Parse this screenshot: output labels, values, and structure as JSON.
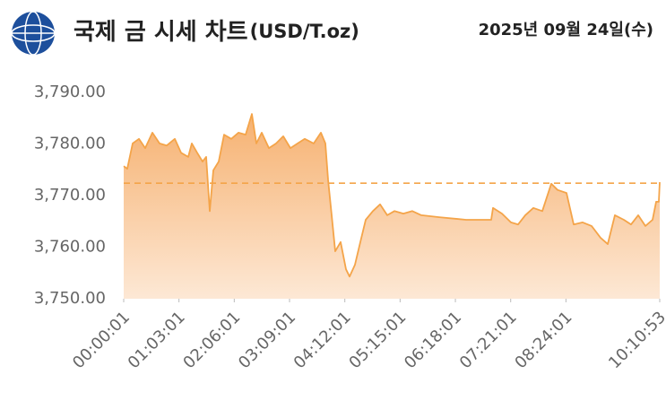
{
  "chart_data": {
    "type": "area",
    "title": "국제 금 시세 차트",
    "title_unit": "(USD/T.oz)",
    "date": "2025년 09월 24일(수)",
    "color": "#f4a449",
    "x": [
      1,
      245,
      613,
      1042,
      1471,
      1961,
      2452,
      2942,
      3494,
      3923,
      4413,
      4658,
      5026,
      5394,
      5639,
      5884,
      6129,
      6497,
      6864,
      7355,
      7845,
      8335,
      8764,
      9071,
      9439,
      9929,
      10419,
      10910,
      11400,
      11890,
      12381,
      12993,
      13484,
      13790,
      13974,
      14219,
      14464,
      14832,
      15200,
      15445,
      15813,
      16181,
      16548,
      17039,
      17529,
      18019,
      18510,
      19122,
      19735,
      20348,
      21574,
      23413,
      25129,
      25252,
      25865,
      26477,
      26968,
      27458,
      28010,
      28622,
      29235,
      29664,
      30277,
      30767,
      31380,
      31993,
      32606,
      33096,
      33587,
      34200,
      34690,
      35180,
      35671,
      36161,
      36406,
      36591,
      36653
    ],
    "values": [
      3775.7,
      3775.2,
      3780.1,
      3781,
      3779.2,
      3782.2,
      3780.1,
      3779.7,
      3781,
      3778.3,
      3777.5,
      3780.1,
      3778.3,
      3776.6,
      3777.5,
      3767,
      3774.9,
      3776.6,
      3781.8,
      3781,
      3782.2,
      3781.8,
      3785.8,
      3780.1,
      3782.2,
      3779.2,
      3780.1,
      3781.5,
      3779.2,
      3780.1,
      3781,
      3780.1,
      3782.2,
      3780.1,
      3773.1,
      3766.2,
      3759.2,
      3761,
      3755.7,
      3754.3,
      3756.6,
      3761,
      3765.3,
      3767,
      3768.3,
      3766.2,
      3767,
      3766.5,
      3767,
      3766.2,
      3765.8,
      3765.3,
      3765.3,
      3767.6,
      3766.5,
      3764.8,
      3764.4,
      3766.2,
      3767.6,
      3767,
      3772.3,
      3771.1,
      3770.5,
      3764.4,
      3764.8,
      3764.1,
      3761.8,
      3760.6,
      3766.2,
      3765.3,
      3764.4,
      3766.2,
      3764.1,
      3765.3,
      3768.8,
      3768.8,
      3772.6
    ],
    "reference_line": 3772.4,
    "xlim": [
      1,
      36653
    ],
    "xticks": [
      {
        "value": 1,
        "label": "00:00:01"
      },
      {
        "value": 3781,
        "label": "01:03:01"
      },
      {
        "value": 7561,
        "label": "02:06:01"
      },
      {
        "value": 11341,
        "label": "03:09:01"
      },
      {
        "value": 15121,
        "label": "04:12:01"
      },
      {
        "value": 18901,
        "label": "05:15:01"
      },
      {
        "value": 22681,
        "label": "06:18:01"
      },
      {
        "value": 26461,
        "label": "07:21:01"
      },
      {
        "value": 30241,
        "label": "08:24:01"
      },
      {
        "value": 36653,
        "label": "10:10:53"
      }
    ],
    "ylim": [
      3750,
      3790
    ],
    "yticks": [
      {
        "value": 3750,
        "label": "3,750.00"
      },
      {
        "value": 3760,
        "label": "3,760.00"
      },
      {
        "value": 3770,
        "label": "3,770.00"
      },
      {
        "value": 3780,
        "label": "3,780.00"
      },
      {
        "value": 3790,
        "label": "3,790.00"
      }
    ],
    "grid": false
  }
}
